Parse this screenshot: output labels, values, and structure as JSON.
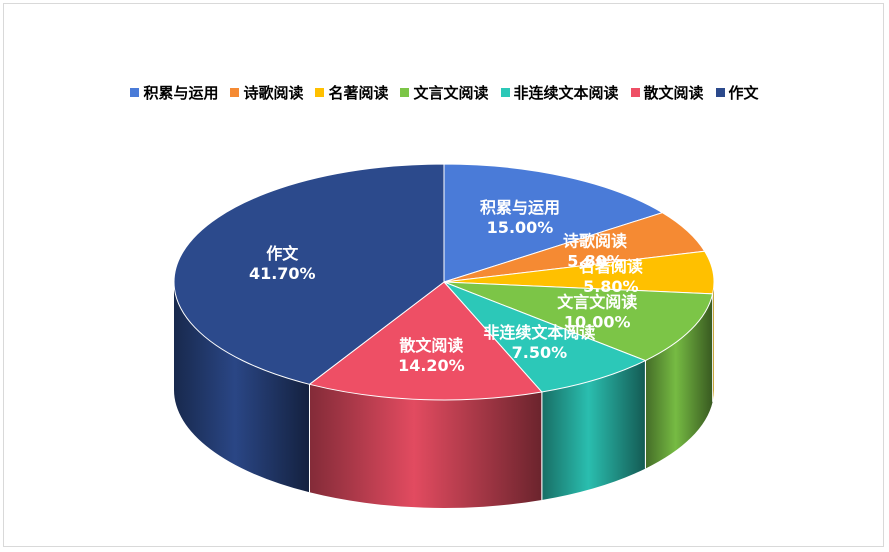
{
  "chart_data": {
    "type": "pie",
    "title": "",
    "legend_position": "top",
    "categories": [
      "积累与运用",
      "诗歌阅读",
      "名著阅读",
      "文言文阅读",
      "非连续文本阅读",
      "散文阅读",
      "作文"
    ],
    "values": [
      15.0,
      5.8,
      5.8,
      10.0,
      7.5,
      14.2,
      41.7
    ],
    "value_labels": [
      "15.00%",
      "5.80%",
      "5.80%",
      "10.00%",
      "7.50%",
      "14.20%",
      "41.70%"
    ],
    "colors": [
      "#4A7BD8",
      "#F58A33",
      "#FFC000",
      "#7CC547",
      "#2CC8B8",
      "#EE4F65",
      "#2C4A8C"
    ],
    "unit": "%",
    "style": "3d"
  }
}
